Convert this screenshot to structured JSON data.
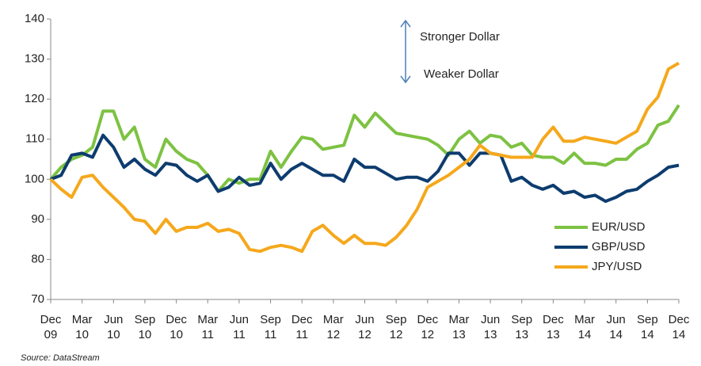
{
  "chart_data": {
    "type": "line",
    "annotations": [
      "Stronger Dollar",
      "Weaker Dollar"
    ],
    "source": "Source: DataStream",
    "categories": [
      "Dec 09",
      null,
      null,
      "Mar 10",
      null,
      null,
      "Jun 10",
      null,
      null,
      "Sep 10",
      null,
      null,
      "Dec 10",
      null,
      null,
      "Mar 11",
      null,
      null,
      "Jun 11",
      null,
      null,
      "Sep 11",
      null,
      null,
      "Dec 11",
      null,
      null,
      "Mar 12",
      null,
      null,
      "Jun 12",
      null,
      null,
      "Sep 12",
      null,
      null,
      "Dec 12",
      null,
      null,
      "Mar 13",
      null,
      null,
      "Jun 13",
      null,
      null,
      "Sep 13",
      null,
      null,
      "Dec 13",
      null,
      null,
      "Mar 14",
      null,
      null,
      "Jun 14",
      null,
      null,
      "Sep 14",
      null,
      null,
      "Dec 14"
    ],
    "series": [
      {
        "name": "EUR/USD",
        "color": "#7dc242",
        "values": [
          100,
          103,
          105,
          106,
          108,
          117,
          117,
          110,
          113,
          105,
          103,
          110,
          107,
          105,
          104,
          101,
          97,
          100,
          99,
          100,
          100,
          107,
          103,
          107,
          110.5,
          110,
          107.5,
          108,
          108.5,
          116,
          113,
          116.5,
          114,
          111.5,
          111,
          110.5,
          110,
          108.5,
          106,
          110,
          112,
          109,
          111,
          110.5,
          108,
          109,
          106,
          105.5,
          105.5,
          104,
          106.5,
          104,
          104,
          103.5,
          105,
          105,
          107.5,
          109,
          113.5,
          114.5,
          118.5
        ]
      },
      {
        "name": "GBP/USD",
        "color": "#0d3c6e",
        "values": [
          100,
          101,
          106,
          106.5,
          105.5,
          111,
          108,
          103,
          105,
          102.5,
          101,
          104,
          103.5,
          101,
          99.5,
          101,
          97,
          98,
          100.5,
          98.5,
          99,
          104,
          100,
          102.5,
          104,
          102.5,
          101,
          101,
          99.5,
          105,
          103,
          103,
          101.5,
          100,
          100.5,
          100.5,
          99.5,
          102,
          106.5,
          106.5,
          103.5,
          106.5,
          106.5,
          106,
          99.5,
          100.5,
          98.5,
          97.5,
          98.5,
          96.5,
          97,
          95.5,
          96,
          94.5,
          95.5,
          97,
          97.5,
          99.5,
          101,
          103,
          103.5
        ]
      },
      {
        "name": "JPY/USD",
        "color": "#f5a81c",
        "values": [
          100,
          97.5,
          95.5,
          100.5,
          101,
          98,
          95.5,
          93,
          90,
          89.5,
          86.5,
          90,
          87,
          88,
          88,
          89,
          87,
          87.5,
          86.5,
          82.5,
          82,
          83,
          83.5,
          83,
          82,
          87,
          88.5,
          86,
          84,
          86,
          84,
          84,
          83.5,
          85.5,
          88.5,
          92.5,
          98,
          99.5,
          101,
          103,
          105,
          108.5,
          106.5,
          106,
          105.5,
          105.5,
          105.5,
          110,
          113,
          109.5,
          109.5,
          110.5,
          110,
          109.5,
          109,
          110.5,
          112,
          117.5,
          120.5,
          127.5,
          129
        ]
      }
    ],
    "ylim": [
      70,
      140
    ],
    "yticks": [
      70,
      80,
      90,
      100,
      110,
      120,
      130,
      140
    ],
    "legend": "right",
    "grid": false
  }
}
